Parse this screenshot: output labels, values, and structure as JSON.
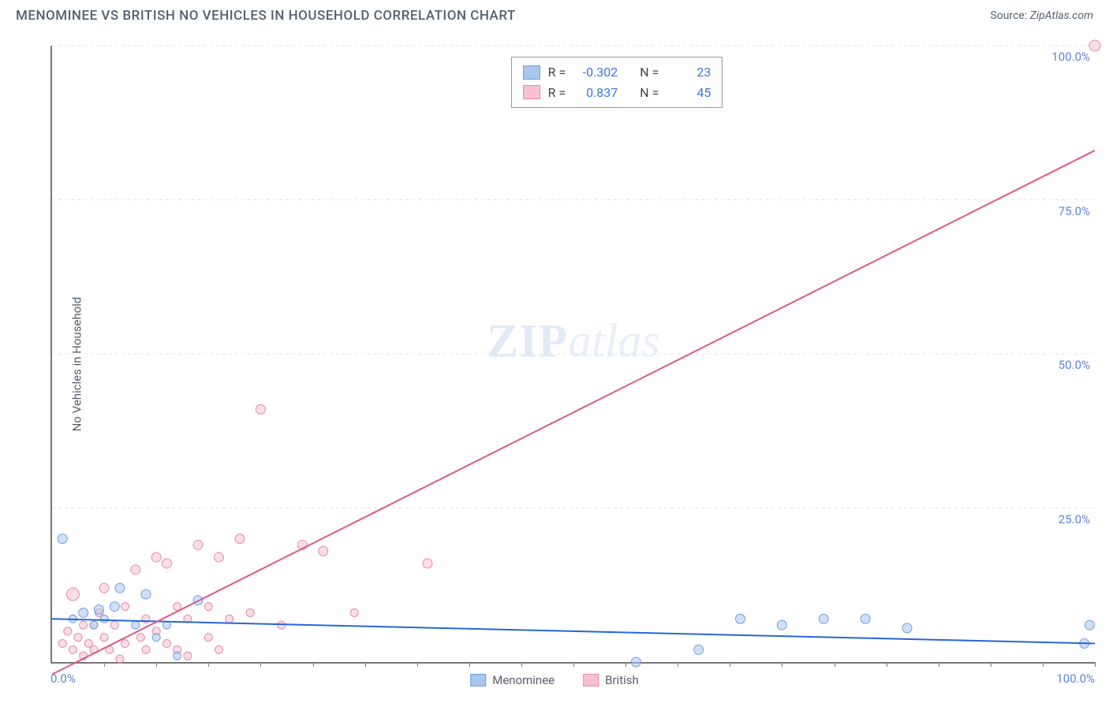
{
  "header": {
    "title": "MENOMINEE VS BRITISH NO VEHICLES IN HOUSEHOLD CORRELATION CHART",
    "source_label": "Source:",
    "source_site": "ZipAtlas.com"
  },
  "watermark": {
    "bold": "ZIP",
    "rest": "atlas"
  },
  "chart": {
    "type": "scatter_with_regression",
    "ylabel": "No Vehicles in Household",
    "xlim": [
      0,
      100
    ],
    "ylim": [
      0,
      100
    ],
    "x_axis_labels": {
      "min": "0.0%",
      "max": "100.0%"
    },
    "y_ticks": [
      {
        "v": 25,
        "label": "25.0%"
      },
      {
        "v": 50,
        "label": "50.0%"
      },
      {
        "v": 75,
        "label": "75.0%"
      },
      {
        "v": 100,
        "label": "100.0%"
      }
    ],
    "x_minor_ticks": [
      5,
      10,
      15,
      20,
      25,
      30,
      35,
      40,
      45,
      50,
      55,
      60,
      65,
      70,
      75,
      80,
      85,
      90,
      95,
      100
    ],
    "grid_color": "#e5e5e5",
    "background_color": "#ffffff",
    "axis_color": "#777777",
    "tick_label_color": "#5a84d6",
    "series": [
      {
        "name": "Menominee",
        "color_fill": "#a8c6ee",
        "color_stroke": "#6f9fe0",
        "line_color": "#2766d6",
        "stats": {
          "R": "-0.302",
          "N": "23"
        },
        "regression": {
          "x1": 0,
          "y1": 7.0,
          "x2": 100,
          "y2": 3.0
        },
        "points": [
          {
            "x": 1,
            "y": 20,
            "r": 6
          },
          {
            "x": 2,
            "y": 7,
            "r": 5
          },
          {
            "x": 3,
            "y": 8,
            "r": 6
          },
          {
            "x": 4,
            "y": 6,
            "r": 5
          },
          {
            "x": 4.5,
            "y": 8.5,
            "r": 6
          },
          {
            "x": 5,
            "y": 7,
            "r": 5
          },
          {
            "x": 6,
            "y": 9,
            "r": 6
          },
          {
            "x": 6.5,
            "y": 12,
            "r": 6
          },
          {
            "x": 8,
            "y": 6,
            "r": 5
          },
          {
            "x": 9,
            "y": 11,
            "r": 6
          },
          {
            "x": 10,
            "y": 4,
            "r": 5
          },
          {
            "x": 11,
            "y": 6,
            "r": 5
          },
          {
            "x": 12,
            "y": 1,
            "r": 5
          },
          {
            "x": 14,
            "y": 10,
            "r": 6
          },
          {
            "x": 56,
            "y": 0,
            "r": 6
          },
          {
            "x": 62,
            "y": 2,
            "r": 6
          },
          {
            "x": 66,
            "y": 7,
            "r": 6
          },
          {
            "x": 70,
            "y": 6,
            "r": 6
          },
          {
            "x": 74,
            "y": 7,
            "r": 6
          },
          {
            "x": 78,
            "y": 7,
            "r": 6
          },
          {
            "x": 82,
            "y": 5.5,
            "r": 6
          },
          {
            "x": 99,
            "y": 3,
            "r": 6
          },
          {
            "x": 99.5,
            "y": 6,
            "r": 6
          }
        ]
      },
      {
        "name": "British",
        "color_fill": "#f6c1d0",
        "color_stroke": "#e88aa8",
        "line_color": "#e15787",
        "stats": {
          "R": "0.837",
          "N": "45"
        },
        "regression": {
          "x1": 0,
          "y1": -2,
          "x2": 100,
          "y2": 83
        },
        "points": [
          {
            "x": 1,
            "y": 3,
            "r": 5
          },
          {
            "x": 1.5,
            "y": 5,
            "r": 5
          },
          {
            "x": 2,
            "y": 2,
            "r": 5
          },
          {
            "x": 2,
            "y": 11,
            "r": 8
          },
          {
            "x": 2.5,
            "y": 4,
            "r": 5
          },
          {
            "x": 3,
            "y": 6,
            "r": 5
          },
          {
            "x": 3,
            "y": 1,
            "r": 5
          },
          {
            "x": 3.5,
            "y": 3,
            "r": 5
          },
          {
            "x": 4,
            "y": 6,
            "r": 5
          },
          {
            "x": 4,
            "y": 2,
            "r": 5
          },
          {
            "x": 4.5,
            "y": 8,
            "r": 5
          },
          {
            "x": 5,
            "y": 4,
            "r": 5
          },
          {
            "x": 5,
            "y": 12,
            "r": 6
          },
          {
            "x": 5.5,
            "y": 2,
            "r": 5
          },
          {
            "x": 6,
            "y": 6,
            "r": 5
          },
          {
            "x": 6.5,
            "y": 0.5,
            "r": 5
          },
          {
            "x": 7,
            "y": 3,
            "r": 5
          },
          {
            "x": 7,
            "y": 9,
            "r": 5
          },
          {
            "x": 8,
            "y": 15,
            "r": 6
          },
          {
            "x": 8.5,
            "y": 4,
            "r": 5
          },
          {
            "x": 9,
            "y": 7,
            "r": 5
          },
          {
            "x": 9,
            "y": 2,
            "r": 5
          },
          {
            "x": 10,
            "y": 17,
            "r": 6
          },
          {
            "x": 10,
            "y": 5,
            "r": 5
          },
          {
            "x": 11,
            "y": 3,
            "r": 5
          },
          {
            "x": 11,
            "y": 16,
            "r": 6
          },
          {
            "x": 12,
            "y": 9,
            "r": 5
          },
          {
            "x": 12,
            "y": 2,
            "r": 5
          },
          {
            "x": 13,
            "y": 7,
            "r": 5
          },
          {
            "x": 13,
            "y": 1,
            "r": 5
          },
          {
            "x": 14,
            "y": 19,
            "r": 6
          },
          {
            "x": 15,
            "y": 9,
            "r": 5
          },
          {
            "x": 15,
            "y": 4,
            "r": 5
          },
          {
            "x": 16,
            "y": 17,
            "r": 6
          },
          {
            "x": 16,
            "y": 2,
            "r": 5
          },
          {
            "x": 17,
            "y": 7,
            "r": 5
          },
          {
            "x": 18,
            "y": 20,
            "r": 6
          },
          {
            "x": 19,
            "y": 8,
            "r": 5
          },
          {
            "x": 20,
            "y": 41,
            "r": 6
          },
          {
            "x": 22,
            "y": 6,
            "r": 5
          },
          {
            "x": 24,
            "y": 19,
            "r": 6
          },
          {
            "x": 26,
            "y": 18,
            "r": 6
          },
          {
            "x": 29,
            "y": 8,
            "r": 5
          },
          {
            "x": 36,
            "y": 16,
            "r": 6
          },
          {
            "x": 100,
            "y": 100,
            "r": 7
          }
        ]
      }
    ]
  },
  "legend_top": {
    "r_label": "R =",
    "n_label": "N ="
  },
  "legend_bottom": [
    {
      "label": "Menominee",
      "fill": "#a8c6ee",
      "stroke": "#6f9fe0"
    },
    {
      "label": "British",
      "fill": "#f6c1d0",
      "stroke": "#e88aa8"
    }
  ]
}
